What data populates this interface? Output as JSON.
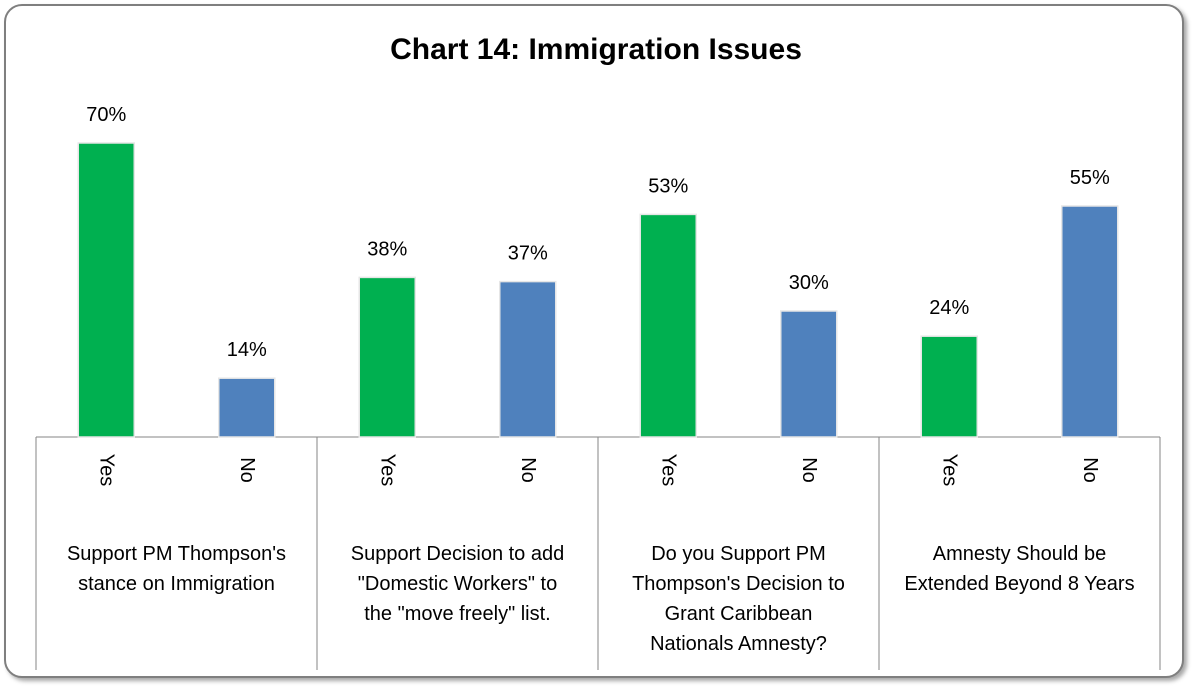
{
  "chart_data": {
    "type": "bar",
    "title": "Chart 14: Immigration Issues",
    "xlabel": "",
    "ylabel": "",
    "ylim": [
      0,
      70
    ],
    "grid": false,
    "legend": "none",
    "colors": {
      "Yes": "#00b050",
      "No": "#4f81bd"
    },
    "groups": [
      {
        "label": [
          "Support PM Thompson's",
          "stance on Immigration"
        ],
        "bars": [
          {
            "category": "Yes",
            "value": 70,
            "label": "70%"
          },
          {
            "category": "No",
            "value": 14,
            "label": "14%"
          }
        ]
      },
      {
        "label": [
          "Support Decision to add",
          "\"Domestic Workers\" to",
          "the \"move freely\" list."
        ],
        "bars": [
          {
            "category": "Yes",
            "value": 38,
            "label": "38%"
          },
          {
            "category": "No",
            "value": 37,
            "label": "37%"
          }
        ]
      },
      {
        "label": [
          "Do you Support PM",
          "Thompson's Decision to",
          "Grant Caribbean",
          "Nationals Amnesty?"
        ],
        "bars": [
          {
            "category": "Yes",
            "value": 53,
            "label": "53%"
          },
          {
            "category": "No",
            "value": 30,
            "label": "30%"
          }
        ]
      },
      {
        "label": [
          "Amnesty Should be",
          "Extended Beyond 8 Years"
        ],
        "bars": [
          {
            "category": "Yes",
            "value": 24,
            "label": "24%"
          },
          {
            "category": "No",
            "value": 55,
            "label": "55%"
          }
        ]
      }
    ]
  }
}
